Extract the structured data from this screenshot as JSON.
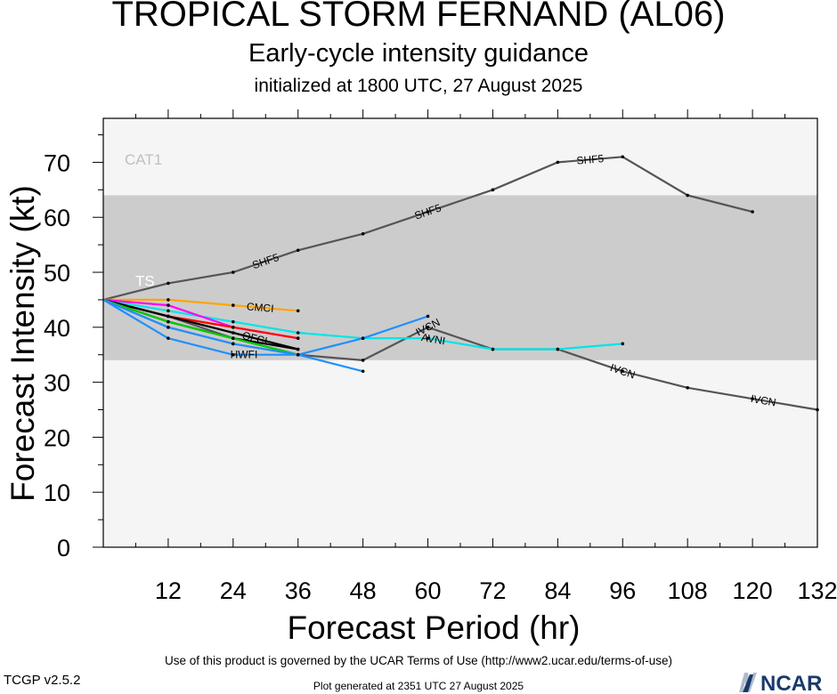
{
  "header": {
    "title": "TROPICAL STORM FERNAND (AL06)",
    "subtitle": "Early-cycle intensity guidance",
    "initialized": "initialized at 1800 UTC, 27 August 2025"
  },
  "footer": {
    "terms": "Use of this product is governed by the UCAR Terms of Use (http://www2.ucar.edu/terms-of-use)",
    "version": "TCGP v2.5.2",
    "generated": "Plot generated at 2351 UTC   27 August 2025",
    "logo_text": "NCAR"
  },
  "chart_data": {
    "type": "line",
    "xlabel": "Forecast Period (hr)",
    "ylabel": "Forecast Intensity (kt)",
    "xlim": [
      0,
      132
    ],
    "ylim": [
      0,
      78
    ],
    "xticks": [
      12,
      24,
      36,
      48,
      60,
      72,
      84,
      96,
      108,
      120,
      132
    ],
    "yticks": [
      0,
      10,
      20,
      30,
      40,
      50,
      60,
      70
    ],
    "grid": false,
    "bands": [
      {
        "label": "CAT1",
        "from": 64,
        "to": 78,
        "color": "#f5f5f5",
        "label_color": "#c0c0c0"
      },
      {
        "label": "TS",
        "from": 34,
        "to": 64,
        "color": "#cccccc",
        "label_color": "#ffffff"
      },
      {
        "label": "",
        "from": 0,
        "to": 34,
        "color": "#f5f5f5",
        "label_color": "#000000"
      }
    ],
    "series": [
      {
        "name": "SHF5",
        "color": "#555555",
        "label_at": [
          30,
          60,
          90
        ],
        "x": [
          0,
          12,
          24,
          36,
          48,
          60,
          72,
          84,
          96,
          108,
          120
        ],
        "y": [
          45,
          48,
          50,
          54,
          57,
          61,
          65,
          70,
          71,
          64,
          61
        ]
      },
      {
        "name": "IVCN",
        "color": "#555555",
        "label_at": [
          60,
          96,
          122
        ],
        "x": [
          0,
          12,
          24,
          36,
          48,
          60,
          72,
          84,
          96,
          108,
          120,
          132
        ],
        "y": [
          45,
          42,
          38,
          35,
          34,
          40,
          36,
          36,
          32,
          29,
          27,
          25
        ]
      },
      {
        "name": "CMCI",
        "color": "#ffa500",
        "label_at": [
          29
        ],
        "x": [
          0,
          12,
          24,
          36
        ],
        "y": [
          45,
          45,
          44,
          43
        ]
      },
      {
        "name": "AVNI",
        "color": "#00e5e5",
        "label_at": [
          61
        ],
        "x": [
          0,
          12,
          24,
          36,
          48,
          60,
          72,
          84,
          96
        ],
        "y": [
          45,
          43,
          41,
          39,
          38,
          38,
          36,
          36,
          37
        ]
      },
      {
        "name": "HWFI",
        "color": "#1e90ff",
        "label_at": [
          26
        ],
        "x": [
          0,
          12,
          24,
          36,
          48,
          60
        ],
        "y": [
          45,
          38,
          35,
          35,
          38,
          42
        ]
      },
      {
        "name": "",
        "color": "#ff00ff",
        "label_at": [],
        "x": [
          0,
          12,
          24,
          36
        ],
        "y": [
          45,
          44,
          40,
          38
        ]
      },
      {
        "name": "",
        "color": "#ff0000",
        "label_at": [],
        "x": [
          0,
          12,
          24,
          36
        ],
        "y": [
          45,
          42,
          40,
          38
        ]
      },
      {
        "name": "OFCI",
        "color": "#000000",
        "label_at": [
          28
        ],
        "x": [
          0,
          12,
          24,
          36
        ],
        "y": [
          45,
          42,
          39,
          36
        ]
      },
      {
        "name": "",
        "color": "#000000",
        "label_at": [],
        "x": [
          0,
          12,
          24,
          36
        ],
        "y": [
          45,
          41,
          38,
          36
        ]
      },
      {
        "name": "",
        "color": "#00cc00",
        "label_at": [],
        "x": [
          0,
          12,
          24,
          36
        ],
        "y": [
          45,
          41,
          38,
          35
        ]
      },
      {
        "name": "",
        "color": "#888888",
        "label_at": [],
        "x": [
          0,
          12,
          24,
          36
        ],
        "y": [
          45,
          40,
          37,
          35
        ]
      },
      {
        "name": "",
        "color": "#1e90ff",
        "label_at": [],
        "x": [
          0,
          12,
          24,
          36,
          48
        ],
        "y": [
          45,
          40,
          37,
          35,
          32
        ]
      }
    ]
  }
}
